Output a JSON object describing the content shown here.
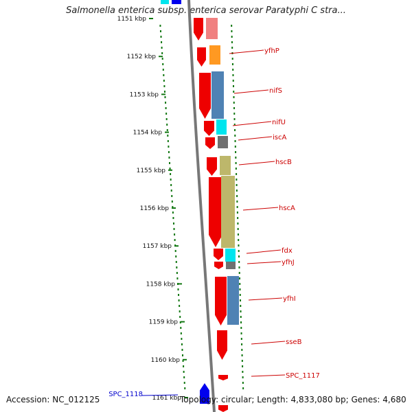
{
  "title": "Salmonella enterica subsp. enterica serovar Paratyphi C stra...",
  "footer": {
    "accession": "Accession: NC_012125",
    "topology": "Topology: circular; Length: 4,833,080 bp; Genes: 4,680"
  },
  "scale": {
    "unit": "kbp",
    "ticks": [
      "1151 kbp",
      "1152 kbp",
      "1153 kbp",
      "1154 kbp",
      "1155 kbp",
      "1156 kbp",
      "1157 kbp",
      "1158 kbp",
      "1159 kbp",
      "1160 kbp",
      "1161 kbp"
    ]
  },
  "colors": {
    "backbone": "#777777",
    "gene_red": "#ee0000",
    "label_red": "#cc0000",
    "label_blue": "#0000cc",
    "dot_green": "#117711",
    "cog_orange": "#ff9922",
    "cog_steelblue": "#4f82b4",
    "cog_cyan": "#00e5ee",
    "cog_gray": "#707070",
    "cog_khaki": "#bdb76b",
    "cog_pink": "#f08080"
  },
  "genes": [
    {
      "name": "yfhP",
      "strand": "minus",
      "cog": "cog_orange"
    },
    {
      "name": "nifS",
      "strand": "minus",
      "cog": "cog_steelblue"
    },
    {
      "name": "nifU",
      "strand": "minus",
      "cog": "cog_cyan"
    },
    {
      "name": "iscA",
      "strand": "minus",
      "cog": "cog_gray"
    },
    {
      "name": "hscB",
      "strand": "minus",
      "cog": "cog_khaki"
    },
    {
      "name": "hscA",
      "strand": "minus",
      "cog": "cog_khaki"
    },
    {
      "name": "fdx",
      "strand": "minus",
      "cog": "cog_cyan"
    },
    {
      "name": "yfhJ",
      "strand": "minus",
      "cog": "cog_gray"
    },
    {
      "name": "yfhI",
      "strand": "minus",
      "cog": "cog_steelblue"
    },
    {
      "name": "sseB",
      "strand": "minus",
      "cog": ""
    },
    {
      "name": "SPC_1117",
      "strand": "minus",
      "cog": ""
    },
    {
      "name": "SPC_1118",
      "strand": "plus",
      "cog": ""
    }
  ]
}
